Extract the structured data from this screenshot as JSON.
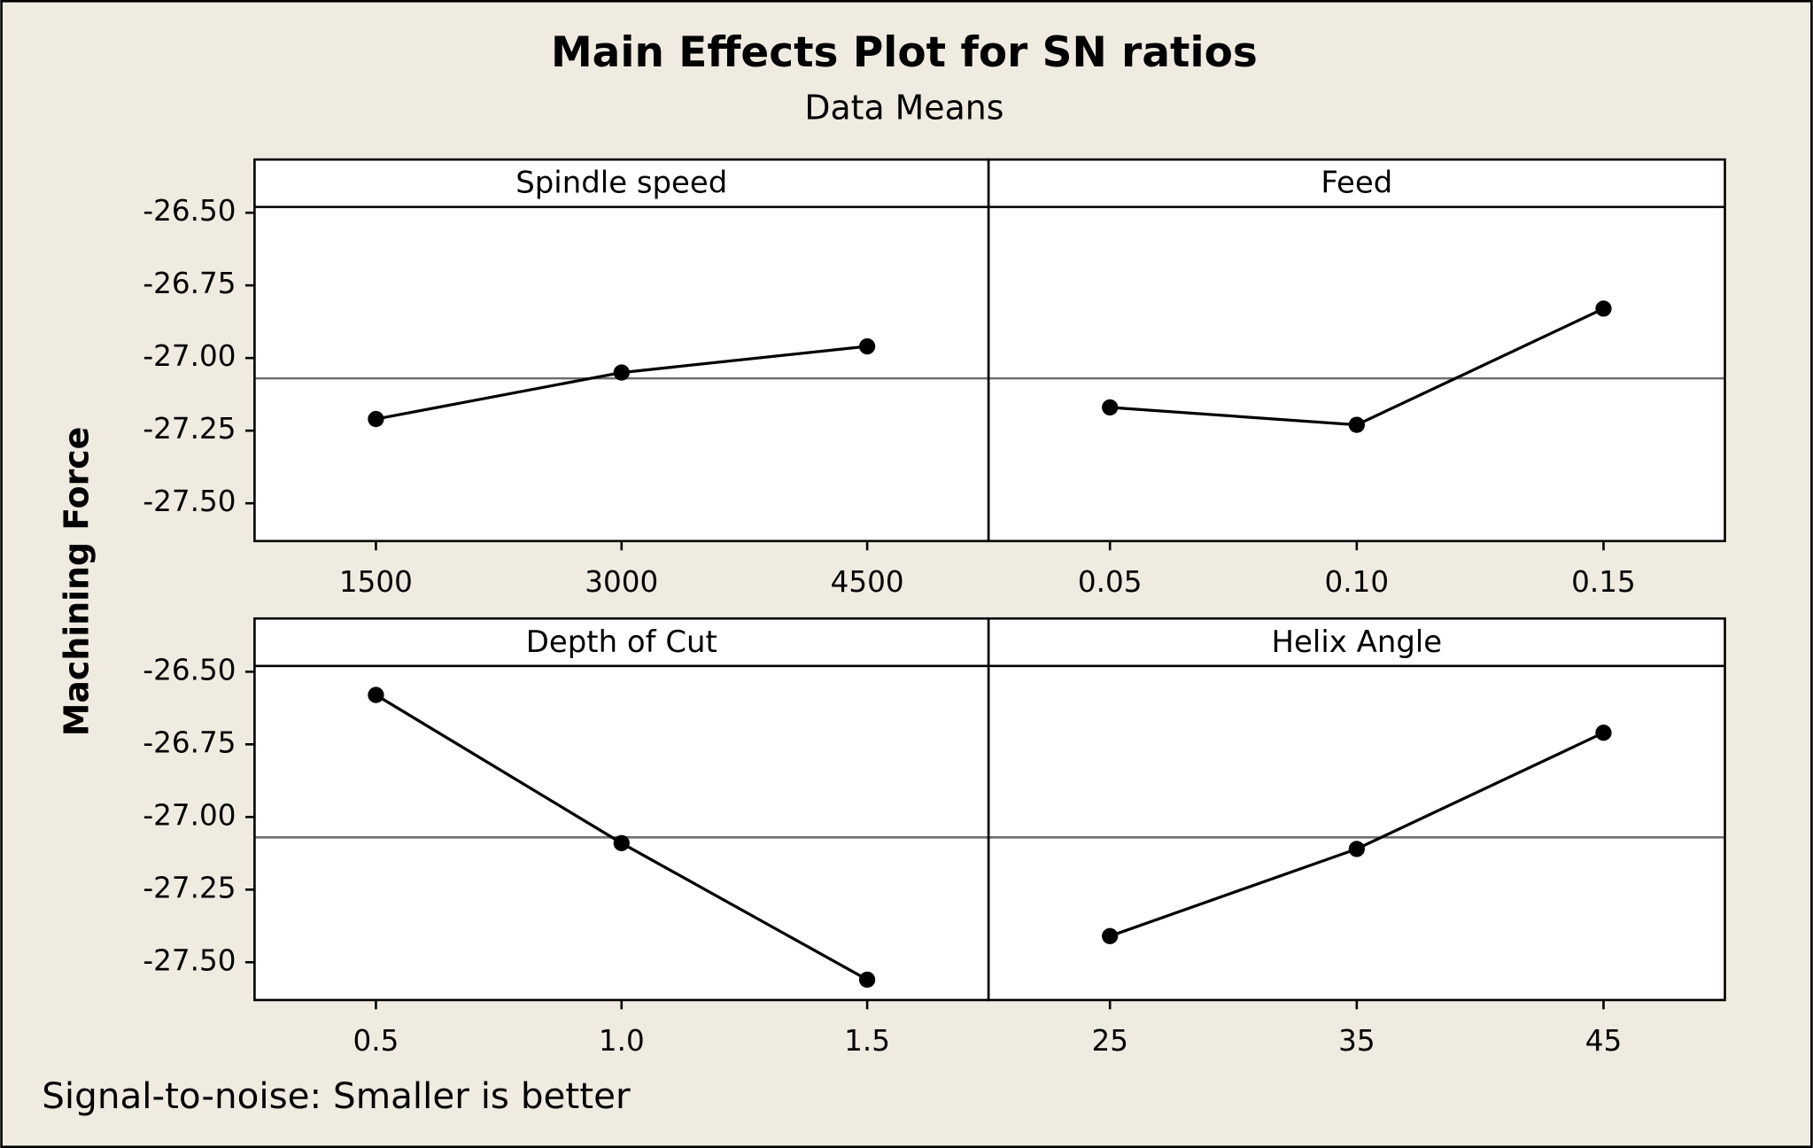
{
  "title": "Main Effects Plot for SN ratios",
  "subtitle": "Data Means",
  "y_label": "Machining Force",
  "footnote": "Signal-to-noise: Smaller is better",
  "chart_data": [
    {
      "type": "line",
      "title": "Spindle speed",
      "categories": [
        "1500",
        "3000",
        "4500"
      ],
      "values": [
        -27.21,
        -27.05,
        -26.96
      ],
      "color": "#000000",
      "reference_line": -27.07,
      "ylim": [
        -27.63,
        -26.48
      ],
      "yticks": [
        {
          "value": -26.5,
          "label": "-26.50"
        },
        {
          "value": -26.75,
          "label": "-26.75"
        },
        {
          "value": -27.0,
          "label": "-27.00"
        },
        {
          "value": -27.25,
          "label": "-27.25"
        },
        {
          "value": -27.5,
          "label": "-27.50"
        }
      ]
    },
    {
      "type": "line",
      "title": "Feed",
      "categories": [
        "0.05",
        "0.10",
        "0.15"
      ],
      "values": [
        -27.17,
        -27.23,
        -26.83
      ],
      "color": "#000000",
      "reference_line": -27.07,
      "ylim": [
        -27.63,
        -26.48
      ]
    },
    {
      "type": "line",
      "title": "Depth of Cut",
      "categories": [
        "0.5",
        "1.0",
        "1.5"
      ],
      "values": [
        -26.58,
        -27.09,
        -27.56
      ],
      "color": "#000000",
      "reference_line": -27.07,
      "ylim": [
        -27.63,
        -26.48
      ],
      "yticks": [
        {
          "value": -26.5,
          "label": "-26.50"
        },
        {
          "value": -26.75,
          "label": "-26.75"
        },
        {
          "value": -27.0,
          "label": "-27.00"
        },
        {
          "value": -27.25,
          "label": "-27.25"
        },
        {
          "value": -27.5,
          "label": "-27.50"
        }
      ]
    },
    {
      "type": "line",
      "title": "Helix Angle",
      "categories": [
        "25",
        "35",
        "45"
      ],
      "values": [
        -27.41,
        -27.11,
        -26.71
      ],
      "color": "#000000",
      "reference_line": -27.07,
      "ylim": [
        -27.63,
        -26.48
      ]
    }
  ]
}
